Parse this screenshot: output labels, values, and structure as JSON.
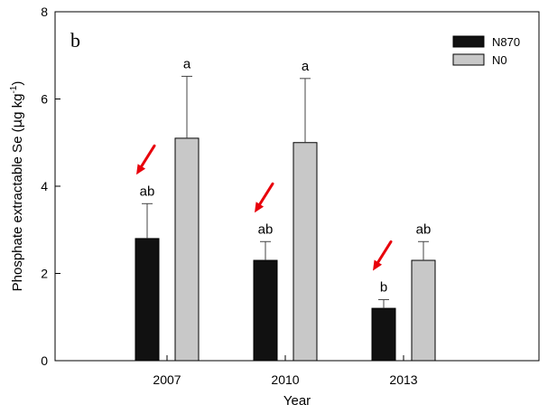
{
  "chart_data": {
    "type": "bar",
    "panel_label": "b",
    "categories": [
      "2007",
      "2010",
      "2013"
    ],
    "series": [
      {
        "name": "N870",
        "color": "#111111",
        "values": [
          2.8,
          2.3,
          1.2
        ],
        "errors": [
          0.8,
          0.43,
          0.2
        ],
        "letters": [
          "ab",
          "ab",
          "b"
        ]
      },
      {
        "name": "N0",
        "color": "#c8c8c8",
        "values": [
          5.1,
          5.0,
          2.3
        ],
        "errors": [
          1.42,
          1.47,
          0.43
        ],
        "letters": [
          "a",
          "a",
          "ab"
        ]
      }
    ],
    "xlabel": "Year",
    "ylabel_main": "Phosphate extractable Se (",
    "ylabel_mu": "μ",
    "ylabel_unit": "g kg",
    "ylabel_sup": "-1",
    "ylabel_close": ")",
    "ylim": [
      0,
      8
    ],
    "yticks": [
      0,
      2,
      4,
      6,
      8
    ],
    "legend_position": "top-right",
    "grid": false,
    "arrow_color": "#e8000b",
    "arrows_point_to_series": "N870"
  }
}
